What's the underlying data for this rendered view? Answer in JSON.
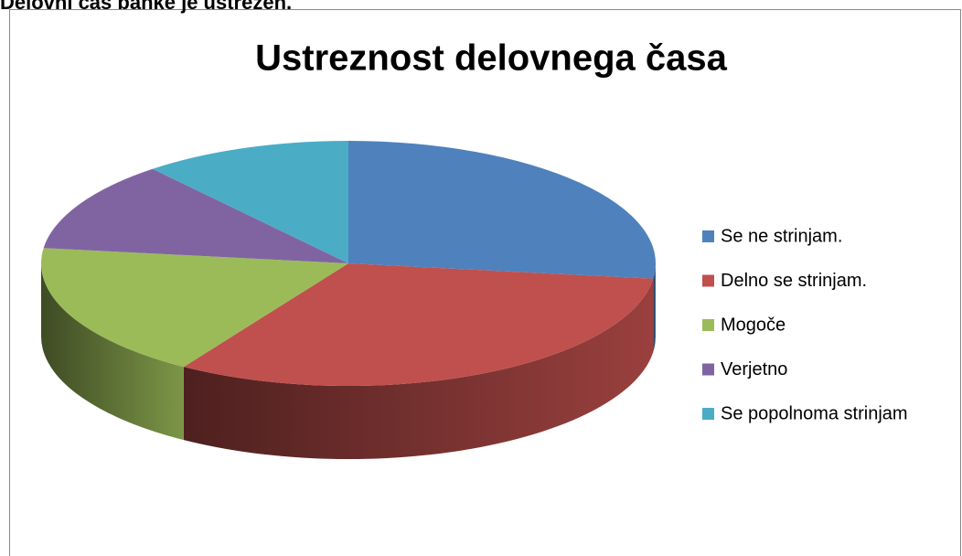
{
  "header": "Delovni čas banke je ustrezen.",
  "chart_data": {
    "type": "pie",
    "title": "Ustreznost delovnega časa",
    "categories": [
      "Se ne strinjam.",
      "Delno se strinjam.",
      "Mogoče",
      "Verjetno",
      "Se popolnoma strinjam"
    ],
    "values": [
      27,
      32,
      18,
      12,
      11
    ],
    "colors": [
      "#4f81bd",
      "#c0504d",
      "#9bbb59",
      "#8064a2",
      "#4bacc6"
    ],
    "legend": "right"
  }
}
